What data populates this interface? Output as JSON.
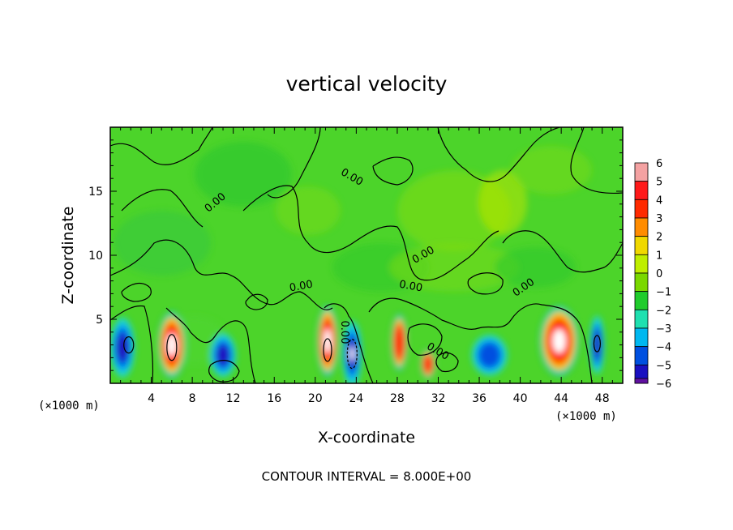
{
  "chart_data": {
    "type": "heatmap",
    "title": "vertical velocity",
    "xlabel": "X-coordinate",
    "ylabel": "Z-coordinate",
    "x_unit": "(×1000 m)",
    "xlim": [
      0,
      50
    ],
    "ylim": [
      0,
      20
    ],
    "x_ticks": [
      4,
      8,
      12,
      16,
      20,
      24,
      28,
      32,
      36,
      40,
      44,
      48
    ],
    "y_ticks": [
      5,
      10,
      15
    ],
    "colorbar": {
      "levels": [
        6,
        5,
        4,
        3,
        2,
        1,
        0,
        -1,
        -2,
        -3,
        -4,
        -5,
        -6
      ],
      "colors": [
        "#f4a2a2",
        "#ff1a1a",
        "#ff2a00",
        "#ff8c00",
        "#f0d800",
        "#bfee00",
        "#7ad800",
        "#20cc2c",
        "#1ee0b0",
        "#00b8f0",
        "#0050e0",
        "#1a10c0",
        "#6010a0"
      ]
    },
    "contour_labels": [
      "0.00",
      "0.00",
      "0.00",
      "0.00",
      "0.00",
      "0.00",
      "0.00",
      "0.00"
    ],
    "features": [
      {
        "kind": "updraft",
        "x": 6,
        "z": 3,
        "peak": 6
      },
      {
        "kind": "downdraft",
        "x": 1.2,
        "z": 2.8,
        "peak": -5
      },
      {
        "kind": "downdraft",
        "x": 11,
        "z": 2.2,
        "peak": -4
      },
      {
        "kind": "updraft",
        "x": 21.2,
        "z": 3.3,
        "peak": 6
      },
      {
        "kind": "downdraft",
        "x": 23.6,
        "z": 2.3,
        "peak": -6
      },
      {
        "kind": "updraft",
        "x": 28.2,
        "z": 3.2,
        "peak": 4
      },
      {
        "kind": "updraft",
        "x": 31,
        "z": 1.5,
        "peak": 4
      },
      {
        "kind": "downdraft",
        "x": 37,
        "z": 2.2,
        "peak": -3
      },
      {
        "kind": "updraft",
        "x": 43.8,
        "z": 3.3,
        "peak": 6
      },
      {
        "kind": "downdraft",
        "x": 47.5,
        "z": 3,
        "peak": -5
      }
    ]
  },
  "footer": {
    "contour_interval": "CONTOUR INTERVAL = 8.000E+00"
  }
}
